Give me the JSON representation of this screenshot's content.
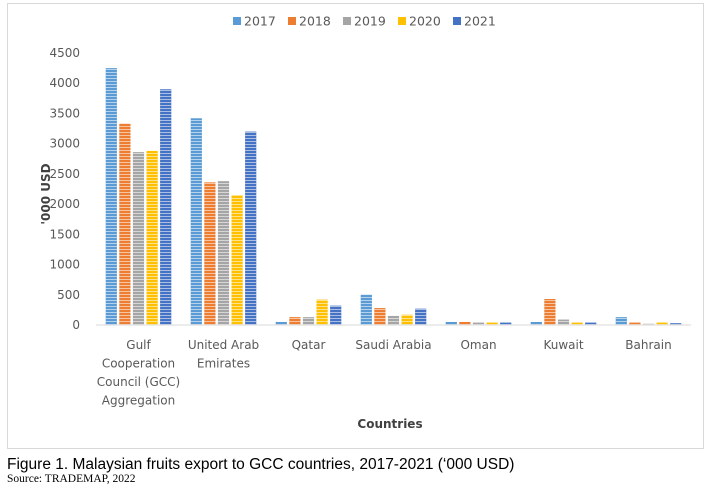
{
  "chart_data": {
    "type": "bar",
    "xlabel": "Countries",
    "ylabel": "'000 USD",
    "ylim": [
      0,
      4500
    ],
    "yticks": [
      0,
      500,
      1000,
      1500,
      2000,
      2500,
      3000,
      3500,
      4000,
      4500
    ],
    "grid": false,
    "legend_position": "top",
    "categories": [
      [
        "Gulf",
        "Cooperation",
        "Council (GCC)",
        "Aggregation"
      ],
      [
        "United Arab",
        "Emirates"
      ],
      [
        "Qatar"
      ],
      [
        "Saudi Arabia"
      ],
      [
        "Oman"
      ],
      [
        "Kuwait"
      ],
      [
        "Bahrain"
      ]
    ],
    "series": [
      {
        "name": "2017",
        "color": "#5b9bd5",
        "values": [
          4250,
          3420,
          50,
          500,
          50,
          50,
          130
        ]
      },
      {
        "name": "2018",
        "color": "#ed7d31",
        "values": [
          3330,
          2360,
          130,
          280,
          50,
          430,
          40
        ]
      },
      {
        "name": "2019",
        "color": "#a5a5a5",
        "values": [
          2860,
          2380,
          130,
          150,
          40,
          90,
          20
        ]
      },
      {
        "name": "2020",
        "color": "#ffc000",
        "values": [
          2880,
          2150,
          420,
          170,
          40,
          40,
          40
        ]
      },
      {
        "name": "2021",
        "color": "#4472c4",
        "values": [
          3900,
          3200,
          320,
          270,
          40,
          40,
          30
        ]
      }
    ]
  },
  "caption": "Figure 1. Malaysian fruits export to GCC countries, 2017-2021 (‘000 USD)",
  "source": "Source: TRADEMAP, 2022"
}
